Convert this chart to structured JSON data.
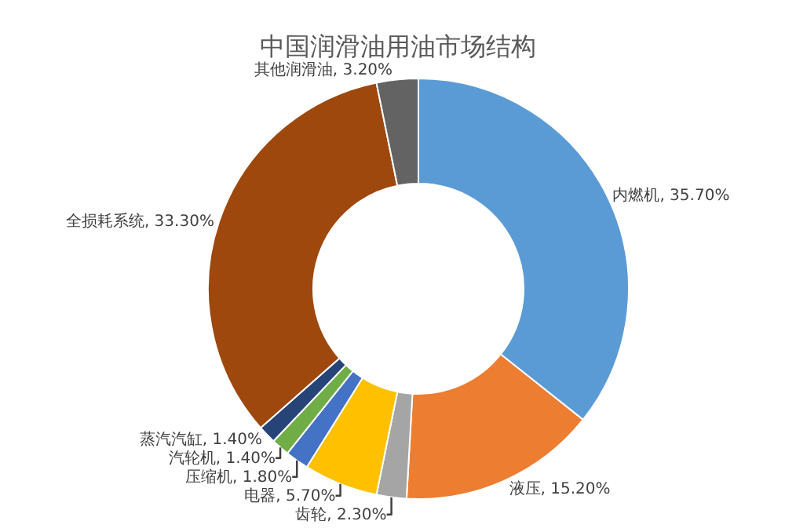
{
  "chart_data": {
    "type": "donut",
    "title": "中国润滑油用油市场结构",
    "categories": [
      "内燃机",
      "液压",
      "齿轮",
      "电器",
      "压缩机",
      "汽轮机",
      "蒸汽汽缸",
      "全损耗系统",
      "其他润滑油"
    ],
    "values": [
      35.7,
      15.2,
      2.3,
      5.7,
      1.8,
      1.4,
      1.4,
      33.3,
      3.2
    ],
    "value_labels": [
      "35.70%",
      "15.20%",
      "2.30%",
      "5.70%",
      "1.80%",
      "1.40%",
      "1.40%",
      "33.30%",
      "3.20%"
    ],
    "colors": [
      "#5b9bd5",
      "#ed7d31",
      "#a5a5a5",
      "#ffc000",
      "#4472c4",
      "#70ad47",
      "#264478",
      "#9e480e",
      "#636363"
    ],
    "legend": false
  }
}
